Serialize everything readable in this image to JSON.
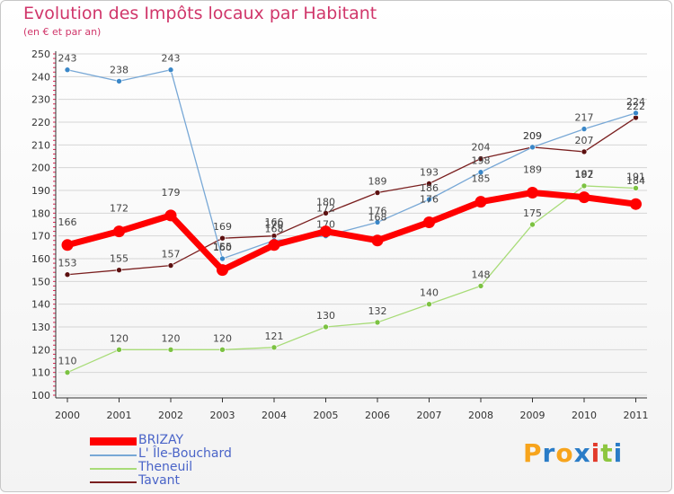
{
  "header": {
    "title": "Evolution des Impôts locaux par Habitant",
    "subtitle": "(en € et par an)"
  },
  "logo": {
    "letters": [
      "P",
      "r",
      "o",
      "x",
      "i",
      "t",
      "i"
    ],
    "colors": [
      "#f7a41c",
      "#2a7cc7",
      "#f7a41c",
      "#2a7cc7",
      "#e23b2b",
      "#8dc63f",
      "#2a7cc7"
    ]
  },
  "colors": {
    "title": "#d0366a",
    "axis": "#333333",
    "grid": "#d6d6d6",
    "tick_marks": "#e02050"
  },
  "chart_data": {
    "type": "line",
    "title": "Evolution des Impôts locaux par Habitant",
    "subtitle": "(en € et par an)",
    "xlabel": "",
    "ylabel": "",
    "x": [
      "2000",
      "2001",
      "2002",
      "2003",
      "2004",
      "2005",
      "2006",
      "2007",
      "2008",
      "2009",
      "2010",
      "2011"
    ],
    "ylim": [
      100,
      250
    ],
    "yticks": [
      100,
      110,
      120,
      130,
      140,
      150,
      160,
      170,
      180,
      190,
      200,
      210,
      220,
      230,
      240,
      250
    ],
    "grid": "horizontal",
    "legend_position": "bottom-left",
    "series": [
      {
        "name": "Tavant",
        "color": "#7a1f1f",
        "dot": "#5c1010",
        "width": 1.3,
        "values": [
          153,
          155,
          157,
          169,
          170,
          180,
          189,
          193,
          204,
          209,
          207,
          222
        ],
        "labels": [
          "153",
          "155",
          "157",
          "169",
          "170",
          "180",
          "189",
          "193",
          "204",
          "209",
          "207",
          "222"
        ]
      },
      {
        "name": "Theneuil",
        "color": "#a8dc78",
        "dot": "#7cc242",
        "width": 1.3,
        "values": [
          110,
          120,
          120,
          120,
          121,
          130,
          132,
          140,
          148,
          175,
          192,
          191
        ],
        "labels": [
          "110",
          "120",
          "120",
          "120",
          "121",
          "130",
          "132",
          "140",
          "148",
          "175",
          "192",
          "191"
        ]
      },
      {
        "name": "L' Île-Bouchard",
        "color": "#78a8d6",
        "dot": "#3a87c8",
        "width": 1.3,
        "values": [
          243,
          238,
          243,
          160,
          168,
          170,
          176,
          186,
          198,
          209,
          217,
          224
        ],
        "labels": [
          "243",
          "238",
          "243",
          "160",
          "168",
          "170",
          "176",
          "186",
          "198",
          "209",
          "217",
          "224"
        ]
      },
      {
        "name": "BRIZAY",
        "color": "#ff0000",
        "dot": "#ff0000",
        "width": 7,
        "values": [
          166,
          172,
          179,
          155,
          166,
          172,
          168,
          176,
          185,
          189,
          187,
          184
        ],
        "labels": [
          "166",
          "172",
          "179",
          "155",
          "166",
          "172",
          "168",
          "176",
          "185",
          "189",
          "187",
          "184"
        ]
      }
    ]
  }
}
